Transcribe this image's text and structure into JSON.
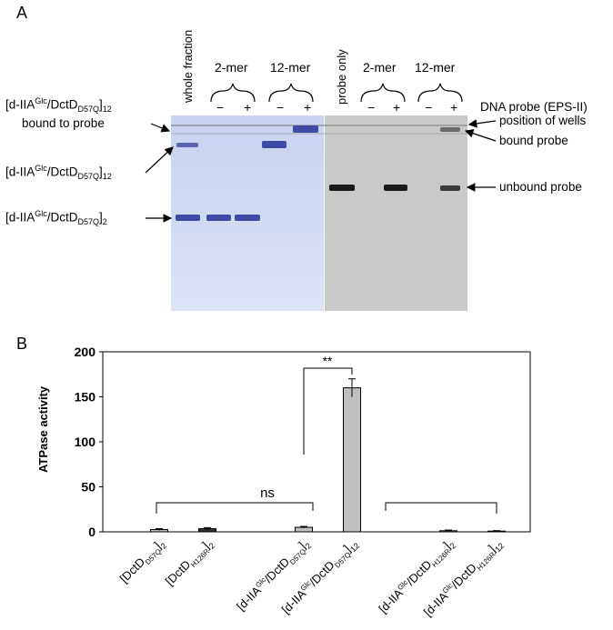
{
  "panelA": {
    "letter": "A",
    "lanes": {
      "whole_fraction": "whole fraction",
      "two_mer_left": "2-mer",
      "twelve_mer_left": "12-mer",
      "probe_only": "probe only",
      "two_mer_right": "2-mer",
      "twelve_mer_right": "12-mer",
      "minus": "−",
      "plus": "+"
    },
    "probe_label": "DNA probe (EPS-II)",
    "left_labels": {
      "bound12_a": "[d-IIA",
      "bound12_sup": "Glc",
      "bound12_b": "/DctD",
      "bound12_sub": "D57Q",
      "bound12_c": "]",
      "bound12_n": "12",
      "bound12_line2": "bound to probe",
      "twelve_a": "[d-IIA",
      "twelve_sup": "Glc",
      "twelve_b": "/DctD",
      "twelve_sub": "D57Q",
      "twelve_c": "]",
      "twelve_n": "12",
      "two_a": "[d-IIA",
      "two_sup": "Glc",
      "two_b": "/DctD",
      "two_sub": "D57Q",
      "two_c": "]",
      "two_n": "2"
    },
    "right_labels": {
      "wells": "position of wells",
      "bound": "bound probe",
      "unbound": "unbound probe"
    }
  },
  "panelB": {
    "letter": "B",
    "ns": "ns",
    "sig": "**"
  },
  "chart_data": {
    "type": "bar",
    "ylabel": "ATPase activity",
    "ylim": [
      0,
      200
    ],
    "yticks": [
      0,
      50,
      100,
      150,
      200
    ],
    "categories": [
      {
        "a": "[DctD",
        "sub": "D57Q",
        "b": "]",
        "n": "2"
      },
      {
        "a": "[DctD",
        "sub": "H126R",
        "b": "]",
        "n": "2"
      },
      {
        "a": "[d-IIA",
        "sup": "Glc",
        "a2": "/DctD",
        "sub": "D57Q",
        "b": "]",
        "n": "2"
      },
      {
        "a": "[d-IIA",
        "sup": "Glc",
        "a2": "/DctD",
        "sub": "D57Q",
        "b": "]",
        "n": "12"
      },
      {
        "a": "[d-IIA",
        "sup": "Glc",
        "a2": "/DctD",
        "sub": "H126R",
        "b": "]",
        "n": "2"
      },
      {
        "a": "[d-IIA",
        "sup": "Glc",
        "a2": "/DctD",
        "sub": "H126R",
        "b": "]",
        "n": "12"
      }
    ],
    "values": [
      2.5,
      3.5,
      5,
      160,
      1.2,
      0.8
    ],
    "errors": [
      1,
      1.2,
      1,
      10,
      0.8,
      0.5
    ],
    "colors": {
      "bar": "#c0c0c0",
      "dark_bar": "#303030"
    }
  }
}
